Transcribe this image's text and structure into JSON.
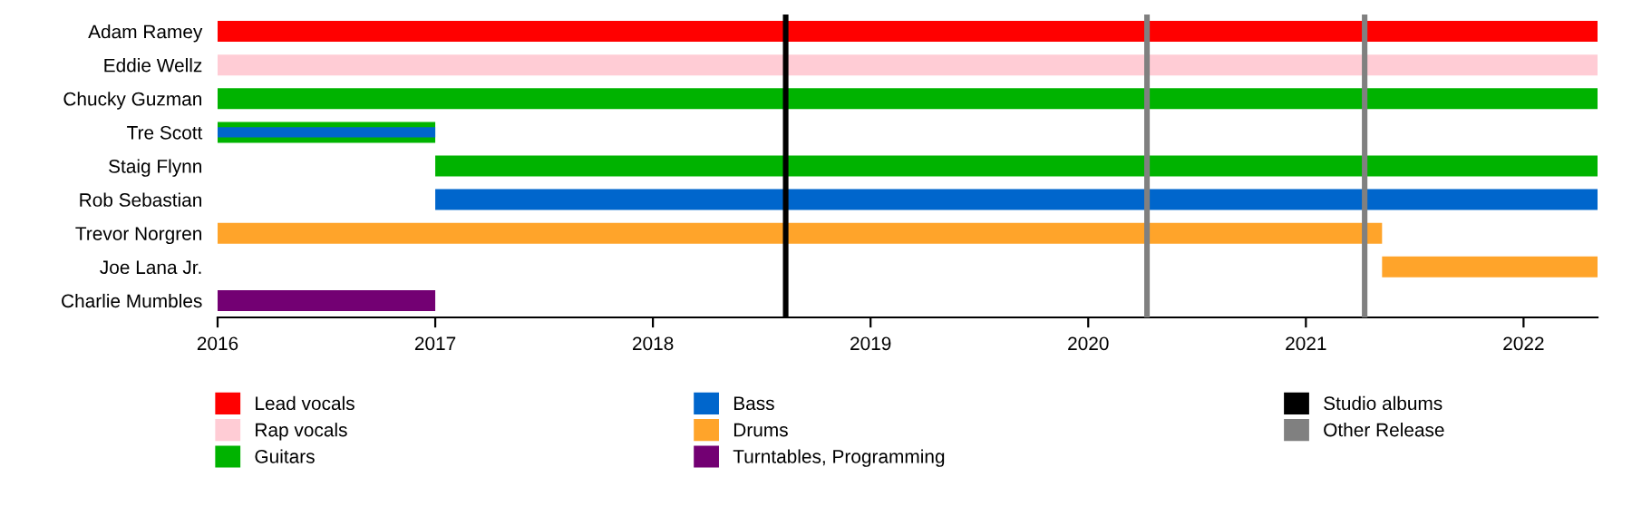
{
  "chart_data": {
    "type": "bar",
    "orientation": "horizontal",
    "categories": [
      "Adam Ramey",
      "Eddie Wellz",
      "Chucky Guzman",
      "Tre Scott",
      "Staig Flynn",
      "Rob Sebastian",
      "Trevor Norgren",
      "Joe Lana Jr.",
      "Charlie Mumbles"
    ],
    "series": [
      {
        "name": "Lead vocals",
        "color": "#ff0000",
        "base": [
          2016,
          null,
          null,
          null,
          null,
          null,
          null,
          null,
          null
        ],
        "values": [
          6.34,
          null,
          null,
          null,
          null,
          null,
          null,
          null,
          null
        ]
      },
      {
        "name": "Rap vocals",
        "color": "#ffccd5",
        "base": [
          null,
          2016,
          null,
          null,
          null,
          null,
          null,
          null,
          null
        ],
        "values": [
          null,
          6.34,
          null,
          null,
          null,
          null,
          null,
          null,
          null
        ]
      },
      {
        "name": "Guitars",
        "color": "#00b300",
        "base": [
          null,
          null,
          2016,
          2016,
          2017,
          null,
          null,
          null,
          null
        ],
        "values": [
          null,
          null,
          6.34,
          1,
          5.34,
          null,
          null,
          null,
          null
        ]
      },
      {
        "name": "Bass",
        "color": "#0066cc",
        "base": [
          null,
          null,
          null,
          2016,
          null,
          2017,
          null,
          null,
          null
        ],
        "values": [
          null,
          null,
          null,
          1,
          null,
          5.34,
          null,
          null,
          null
        ]
      },
      {
        "name": "Drums",
        "color": "#ffa42a",
        "base": [
          null,
          null,
          null,
          null,
          null,
          null,
          2016,
          2021.35,
          null
        ],
        "values": [
          null,
          null,
          null,
          null,
          null,
          null,
          5.35,
          0.99,
          null
        ]
      },
      {
        "name": "Turntables, Programming",
        "color": "#730073",
        "base": [
          null,
          null,
          null,
          null,
          null,
          null,
          null,
          null,
          2016
        ],
        "values": [
          null,
          null,
          null,
          null,
          null,
          null,
          null,
          null,
          1
        ]
      }
    ],
    "ref_lines": [
      {
        "axis": "x",
        "value": 2018.61,
        "label": "Studio albums",
        "color": "#000000"
      },
      {
        "axis": "x",
        "value": 2020.27,
        "label": "Other Release",
        "color": "#808080"
      },
      {
        "axis": "x",
        "value": 2021.27,
        "color": "#808080"
      }
    ],
    "xlim": [
      2016,
      2022.34
    ],
    "xticks": [
      2016,
      2017,
      2018,
      2019,
      2020,
      2021,
      2022
    ],
    "grid": false,
    "legend": "bottom"
  }
}
